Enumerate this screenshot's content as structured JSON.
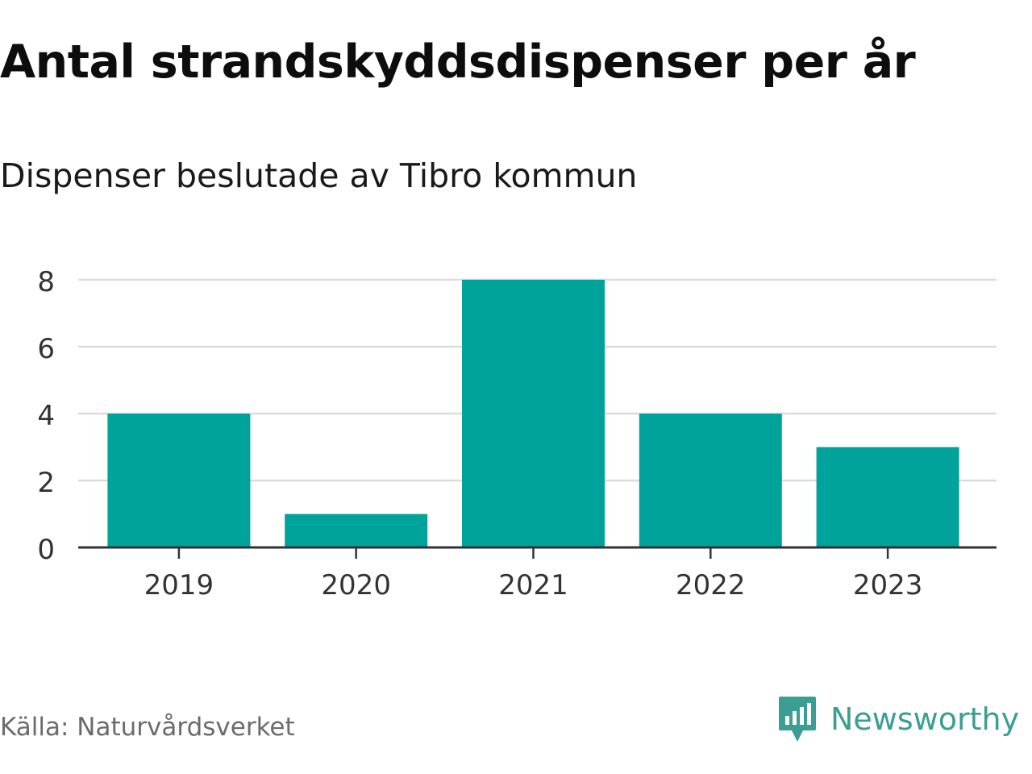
{
  "header": {
    "title": "Antal strandskyddsdispenser per år",
    "subtitle": "Dispenser beslutade av Tibro kommun"
  },
  "footer": {
    "source": "Källa: Naturvårdsverket",
    "brand": "Newsworthy",
    "brand_icon": "bar-chart-speech-bubble-icon"
  },
  "colors": {
    "bar": "#00a39b",
    "grid": "#dcdcdc",
    "axis": "#333333",
    "tick_text": "#333333",
    "brand": "#3a9e92"
  },
  "chart_data": {
    "type": "bar",
    "title": "Antal strandskyddsdispenser per år",
    "subtitle": "Dispenser beslutade av Tibro kommun",
    "categories": [
      "2019",
      "2020",
      "2021",
      "2022",
      "2023"
    ],
    "values": [
      4,
      1,
      8,
      4,
      3
    ],
    "xlabel": "",
    "ylabel": "",
    "ylim": [
      0,
      8
    ],
    "yticks": [
      0,
      2,
      4,
      6,
      8
    ],
    "grid": true,
    "legend": "none"
  }
}
